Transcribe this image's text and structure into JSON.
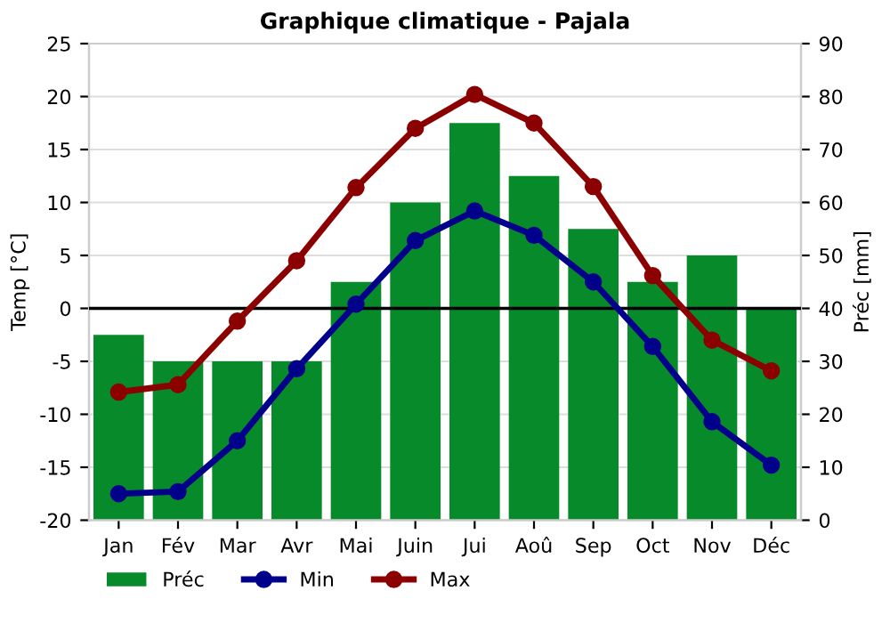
{
  "chart_data": {
    "type": "line",
    "title": "Graphique climatique - Pajala",
    "ylabel": "Temp [°C]",
    "y2label": "Préc [mm]",
    "categories": [
      "Jan",
      "Fév",
      "Mar",
      "Avr",
      "Mai",
      "Juin",
      "Jui",
      "Aoû",
      "Sep",
      "Oct",
      "Nov",
      "Déc"
    ],
    "series": [
      {
        "name": "Préc",
        "type": "bar",
        "axis": "y2",
        "color": "#078a2a",
        "values": [
          35,
          30,
          30,
          30,
          45,
          60,
          75,
          65,
          55,
          45,
          50,
          40
        ]
      },
      {
        "name": "Min",
        "color": "#00008b",
        "values": [
          -17.5,
          -17.3,
          -12.5,
          -5.7,
          0.4,
          6.4,
          9.2,
          6.9,
          2.5,
          -3.6,
          -10.7,
          -14.8
        ]
      },
      {
        "name": "Max",
        "color": "#8b0000",
        "values": [
          -7.9,
          -7.2,
          -1.2,
          4.5,
          11.4,
          17.0,
          20.2,
          17.5,
          11.5,
          3.1,
          -3.0,
          -5.9
        ]
      }
    ],
    "ylim": [
      -20,
      25
    ],
    "yticks": [
      -20,
      -15,
      -10,
      -5,
      0,
      5,
      10,
      15,
      20,
      25
    ],
    "y2lim": [
      0,
      90
    ],
    "y2ticks": [
      0,
      10,
      20,
      30,
      40,
      50,
      60,
      70,
      80,
      90
    ],
    "ref_lines": [
      {
        "axis": "y",
        "value": 0,
        "label": null,
        "color": "#000000"
      }
    ],
    "grid": true,
    "legend": "bottom",
    "marker": "circle",
    "line_style": "solid"
  }
}
